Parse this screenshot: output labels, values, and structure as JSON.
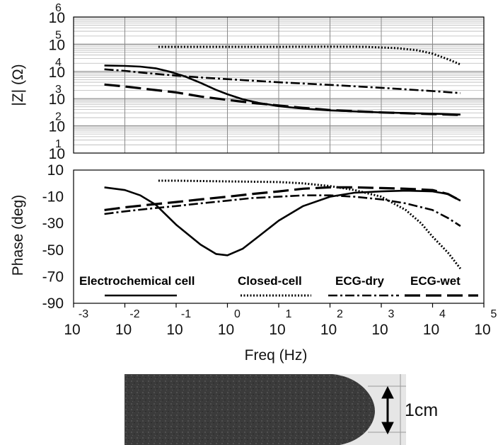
{
  "chart_data": [
    {
      "type": "line",
      "xlabel": "",
      "ylabel": "|Z| (Ω)",
      "x_scale": "log",
      "y_scale": "log",
      "xlim": [
        0.001,
        100000
      ],
      "ylim": [
        10,
        1000000
      ],
      "grid": true,
      "y_ticks": [
        {
          "base": "10",
          "exp": "6"
        },
        {
          "base": "10",
          "exp": "5"
        },
        {
          "base": "10",
          "exp": "4"
        },
        {
          "base": "10",
          "exp": "3"
        },
        {
          "base": "10",
          "exp": "2"
        },
        {
          "base": "10",
          "exp": "1"
        }
      ],
      "series": [
        {
          "name": "Electrochemical cell",
          "style": "solid",
          "x": [
            0.004,
            0.01,
            0.02,
            0.04,
            0.08,
            0.15,
            0.3,
            0.6,
            1,
            2,
            4,
            10,
            30,
            100,
            1000,
            10000,
            35000
          ],
          "y": [
            16500,
            16000,
            15000,
            13000,
            9500,
            6500,
            3800,
            2100,
            1450,
            950,
            700,
            530,
            430,
            370,
            310,
            280,
            260
          ]
        },
        {
          "name": "Closed-cell",
          "style": "dotted",
          "x": [
            0.045,
            0.1,
            1,
            10,
            100,
            500,
            2000,
            5000,
            10000,
            20000,
            35000
          ],
          "y": [
            80000,
            80000,
            80000,
            80000,
            81000,
            80000,
            72000,
            60000,
            45000,
            28000,
            18000
          ]
        },
        {
          "name": "ECG-dry",
          "style": "dash-dot",
          "x": [
            0.004,
            0.01,
            0.03,
            0.1,
            0.3,
            1,
            3,
            10,
            100,
            1000,
            10000,
            35000
          ],
          "y": [
            12000,
            10500,
            8500,
            7000,
            6000,
            5200,
            4600,
            4000,
            3200,
            2500,
            1900,
            1600
          ]
        },
        {
          "name": "ECG-wet",
          "style": "long-dash",
          "x": [
            0.004,
            0.01,
            0.03,
            0.1,
            0.3,
            1,
            3,
            10,
            30,
            100,
            1000,
            10000,
            35000
          ],
          "y": [
            3300,
            2800,
            2200,
            1700,
            1200,
            900,
            700,
            560,
            460,
            380,
            310,
            270,
            250
          ]
        }
      ]
    },
    {
      "type": "line",
      "xlabel": "Freq (Hz)",
      "ylabel": "Phase (deg)",
      "x_scale": "log",
      "xlim": [
        0.001,
        100000
      ],
      "ylim": [
        -90,
        10
      ],
      "grid": false,
      "y_ticks": [
        "10",
        "-10",
        "-30",
        "-50",
        "-70",
        "-90"
      ],
      "x_ticks": [
        {
          "base": "10",
          "exp": "-3"
        },
        {
          "base": "10",
          "exp": "-2"
        },
        {
          "base": "10",
          "exp": "-1"
        },
        {
          "base": "10",
          "exp": "0"
        },
        {
          "base": "10",
          "exp": "1"
        },
        {
          "base": "10",
          "exp": "2"
        },
        {
          "base": "10",
          "exp": "3"
        },
        {
          "base": "10",
          "exp": "4"
        },
        {
          "base": "10",
          "exp": "5"
        }
      ],
      "legend": {
        "placement": "bottom",
        "entries": [
          "Electrochemical cell",
          "Closed-cell",
          "ECG-dry",
          "ECG-wet"
        ]
      },
      "series": [
        {
          "name": "Electrochemical cell",
          "style": "solid",
          "x": [
            0.004,
            0.01,
            0.02,
            0.04,
            0.1,
            0.3,
            0.6,
            1,
            2,
            4,
            10,
            30,
            100,
            300,
            1000,
            3000,
            10000,
            20000,
            35000
          ],
          "y": [
            -3,
            -5,
            -9,
            -16,
            -31,
            -46,
            -53,
            -54,
            -49,
            -40,
            -28,
            -17,
            -10,
            -7,
            -6,
            -5.5,
            -6,
            -8,
            -13
          ]
        },
        {
          "name": "Closed-cell",
          "style": "dotted",
          "x": [
            0.045,
            0.1,
            1,
            10,
            30,
            100,
            300,
            1000,
            3000,
            6000,
            10000,
            20000,
            35000
          ],
          "y": [
            2,
            2,
            1.5,
            1,
            0,
            -2,
            -5,
            -10,
            -20,
            -30,
            -40,
            -52,
            -64
          ]
        },
        {
          "name": "ECG-dry",
          "style": "dash-dot",
          "x": [
            0.004,
            0.01,
            0.03,
            0.1,
            0.3,
            1,
            3,
            10,
            30,
            100,
            300,
            1000,
            3000,
            10000,
            20000,
            35000
          ],
          "y": [
            -23,
            -21,
            -19,
            -17,
            -15,
            -13,
            -11,
            -10,
            -9,
            -9,
            -10,
            -12,
            -15,
            -20,
            -26,
            -32
          ]
        },
        {
          "name": "ECG-wet",
          "style": "long-dash",
          "x": [
            0.004,
            0.01,
            0.03,
            0.1,
            0.3,
            1,
            3,
            10,
            30,
            100,
            300,
            1000,
            3000,
            10000,
            20000,
            35000
          ],
          "y": [
            -20,
            -18,
            -16,
            -14,
            -12,
            -10,
            -8,
            -6,
            -4,
            -3,
            -3,
            -3.5,
            -4,
            -5,
            -8,
            -13
          ]
        }
      ]
    }
  ],
  "photo": {
    "scale_label": "1cm"
  }
}
